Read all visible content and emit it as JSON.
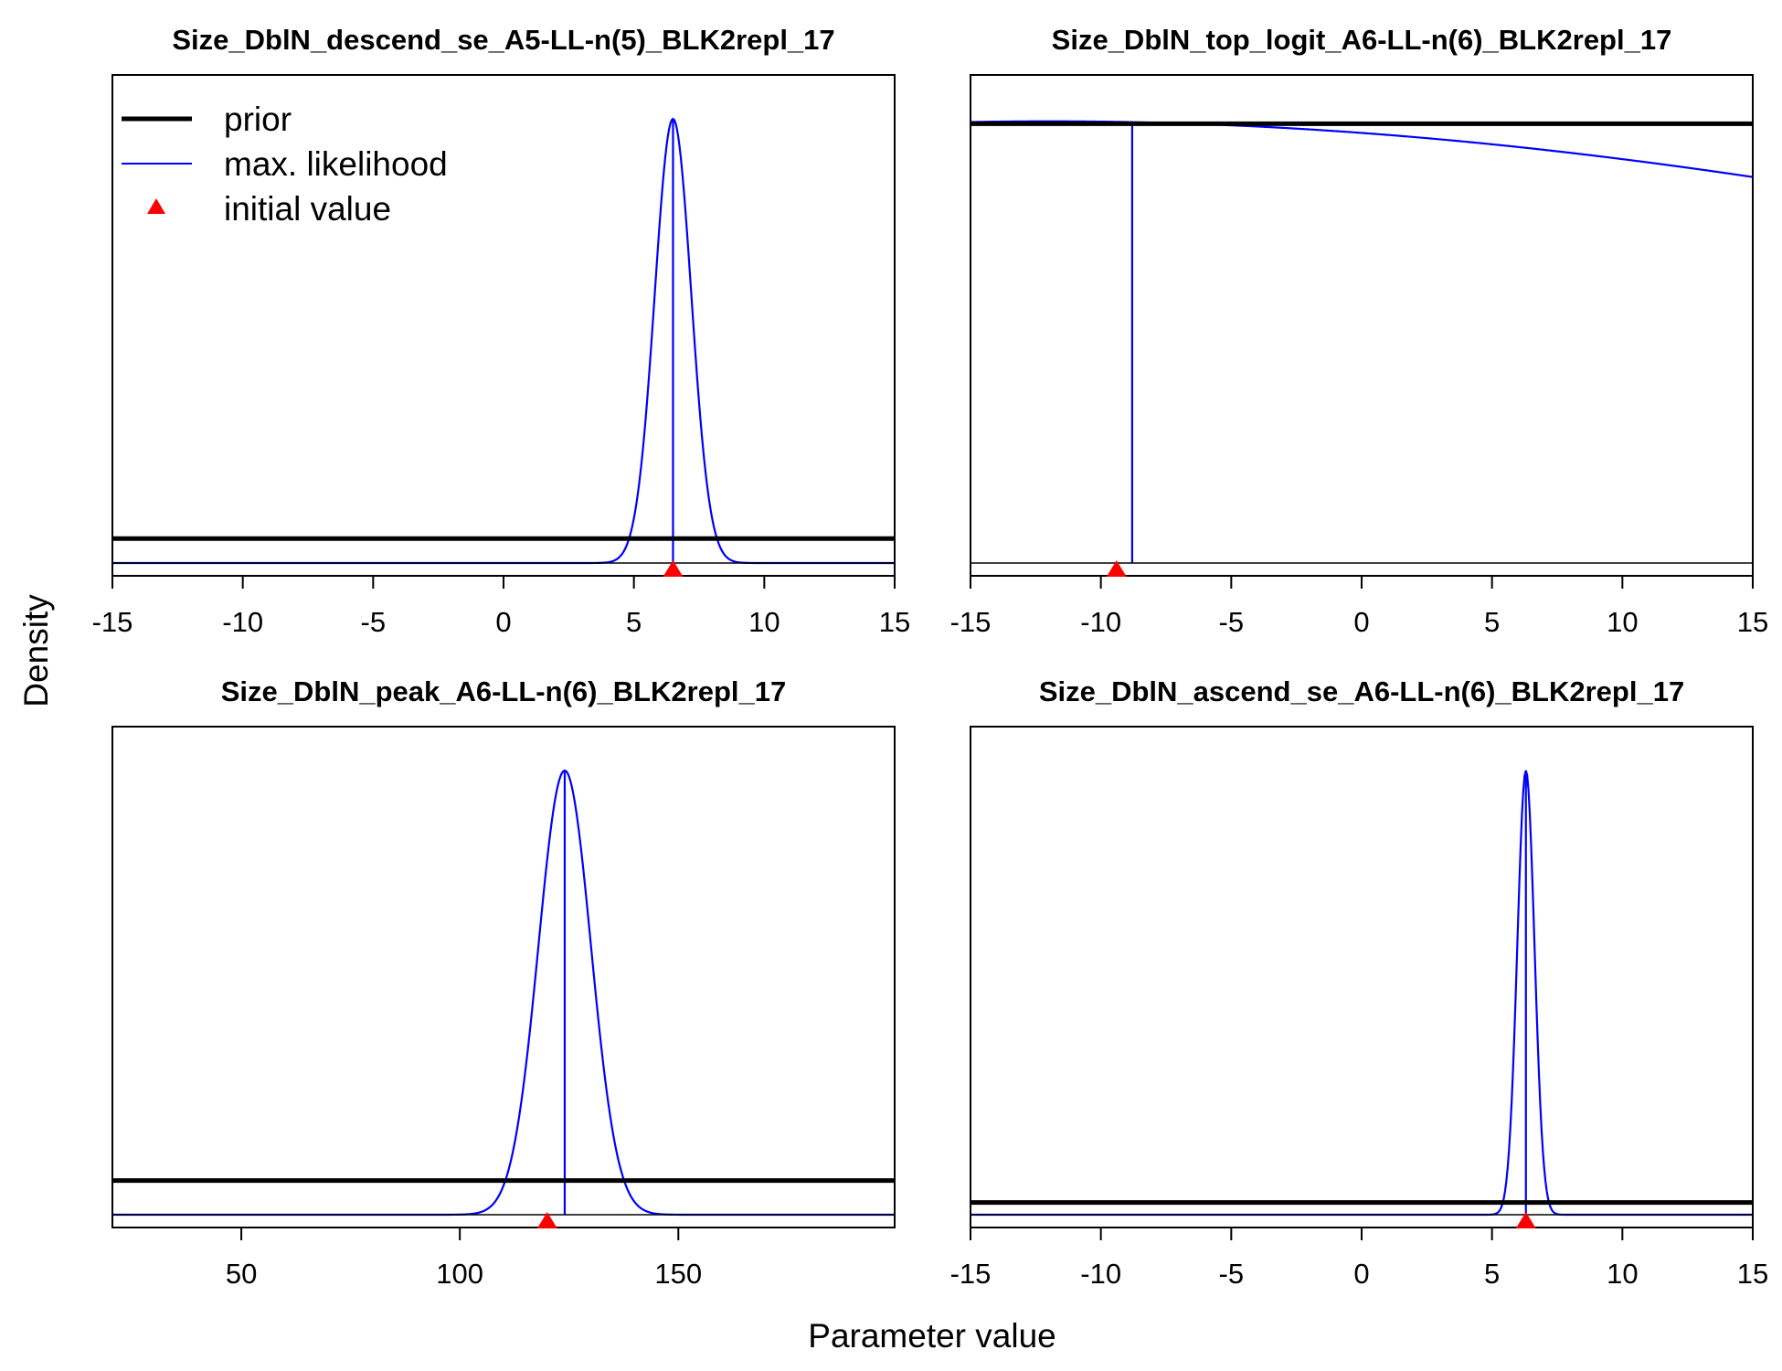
{
  "figure": {
    "ylabel": "Density",
    "xlabel": "Parameter value",
    "legend": {
      "placement": "top-left of first panel",
      "items": [
        {
          "label": "prior",
          "kind": "line",
          "color": "#000000"
        },
        {
          "label": "max. likelihood",
          "kind": "line",
          "color": "#0000ff"
        },
        {
          "label": "initial value",
          "kind": "triangle",
          "color": "#ff0000"
        }
      ]
    },
    "colors": {
      "prior": "#000000",
      "mle": "#0000ff",
      "initial": "#ff0000"
    }
  },
  "chart_data": [
    {
      "type": "line",
      "title": "Size_DblN_descend_se_A5-LL-n(5)_BLK2repl_17",
      "xlim": [
        -15,
        15
      ],
      "ticks": [
        -15,
        -10,
        -5,
        0,
        5,
        10,
        15
      ],
      "tick_labels": [
        "-15",
        "-10",
        "-5",
        "0",
        "5",
        "10",
        "15"
      ],
      "prior_level": 0.05,
      "mle": {
        "mean": 6.5,
        "sd": 0.7,
        "height": 0.91,
        "vline_height": 0.91
      },
      "initial_value": 6.5
    },
    {
      "type": "line",
      "title": "Size_DblN_top_logit_A6-LL-n(6)_BLK2repl_17",
      "xlim": [
        -15,
        15
      ],
      "ticks": [
        -15,
        -10,
        -5,
        0,
        5,
        10,
        15
      ],
      "tick_labels": [
        "-15",
        "-10",
        "-5",
        "0",
        "5",
        "10",
        "15"
      ],
      "prior_level": 0.9,
      "mle": {
        "mean": -12,
        "sd": 52,
        "height": 0.905,
        "vline_x": -8.8,
        "vline_height": 0.905
      },
      "initial_value": -9.4
    },
    {
      "type": "line",
      "title": "Size_DblN_peak_A6-LL-n(6)_BLK2repl_17",
      "xlim": [
        20.5,
        199.5
      ],
      "ticks": [
        50,
        100,
        150
      ],
      "tick_labels": [
        "50",
        "100",
        "150"
      ],
      "prior_level": 0.07,
      "mle": {
        "mean": 124,
        "sd": 6,
        "height": 0.91,
        "vline_height": 0.91
      },
      "initial_value": 120
    },
    {
      "type": "line",
      "title": "Size_DblN_ascend_se_A6-LL-n(6)_BLK2repl_17",
      "xlim": [
        -15,
        15
      ],
      "ticks": [
        -15,
        -10,
        -5,
        0,
        5,
        10,
        15
      ],
      "tick_labels": [
        "-15",
        "-10",
        "-5",
        "0",
        "5",
        "10",
        "15"
      ],
      "prior_level": 0.025,
      "mle": {
        "mean": 6.3,
        "sd": 0.33,
        "height": 0.91,
        "vline_height": 0.91
      },
      "initial_value": 6.3
    }
  ]
}
